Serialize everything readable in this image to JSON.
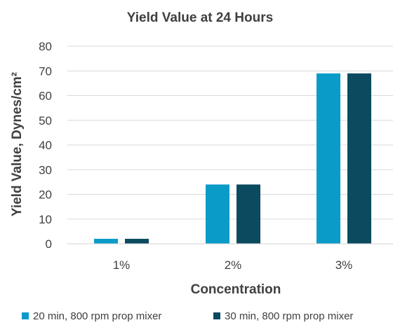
{
  "chart_data": {
    "type": "bar",
    "title": "Yield Value at 24 Hours",
    "xlabel": "Concentration",
    "ylabel": "Yield Value, Dynes/cm²",
    "categories": [
      "1%",
      "2%",
      "3%"
    ],
    "ylim": [
      0,
      80
    ],
    "yticks": [
      0,
      10,
      20,
      30,
      40,
      50,
      60,
      70,
      80
    ],
    "grid": true,
    "legend_position": "bottom",
    "series": [
      {
        "name": "20 min, 800 rpm prop mixer",
        "color": "#0B9BC9",
        "values": [
          2,
          24,
          69
        ]
      },
      {
        "name": "30 min, 800 rpm prop mixer",
        "color": "#0B4A5F",
        "values": [
          2,
          24,
          69
        ]
      }
    ]
  }
}
